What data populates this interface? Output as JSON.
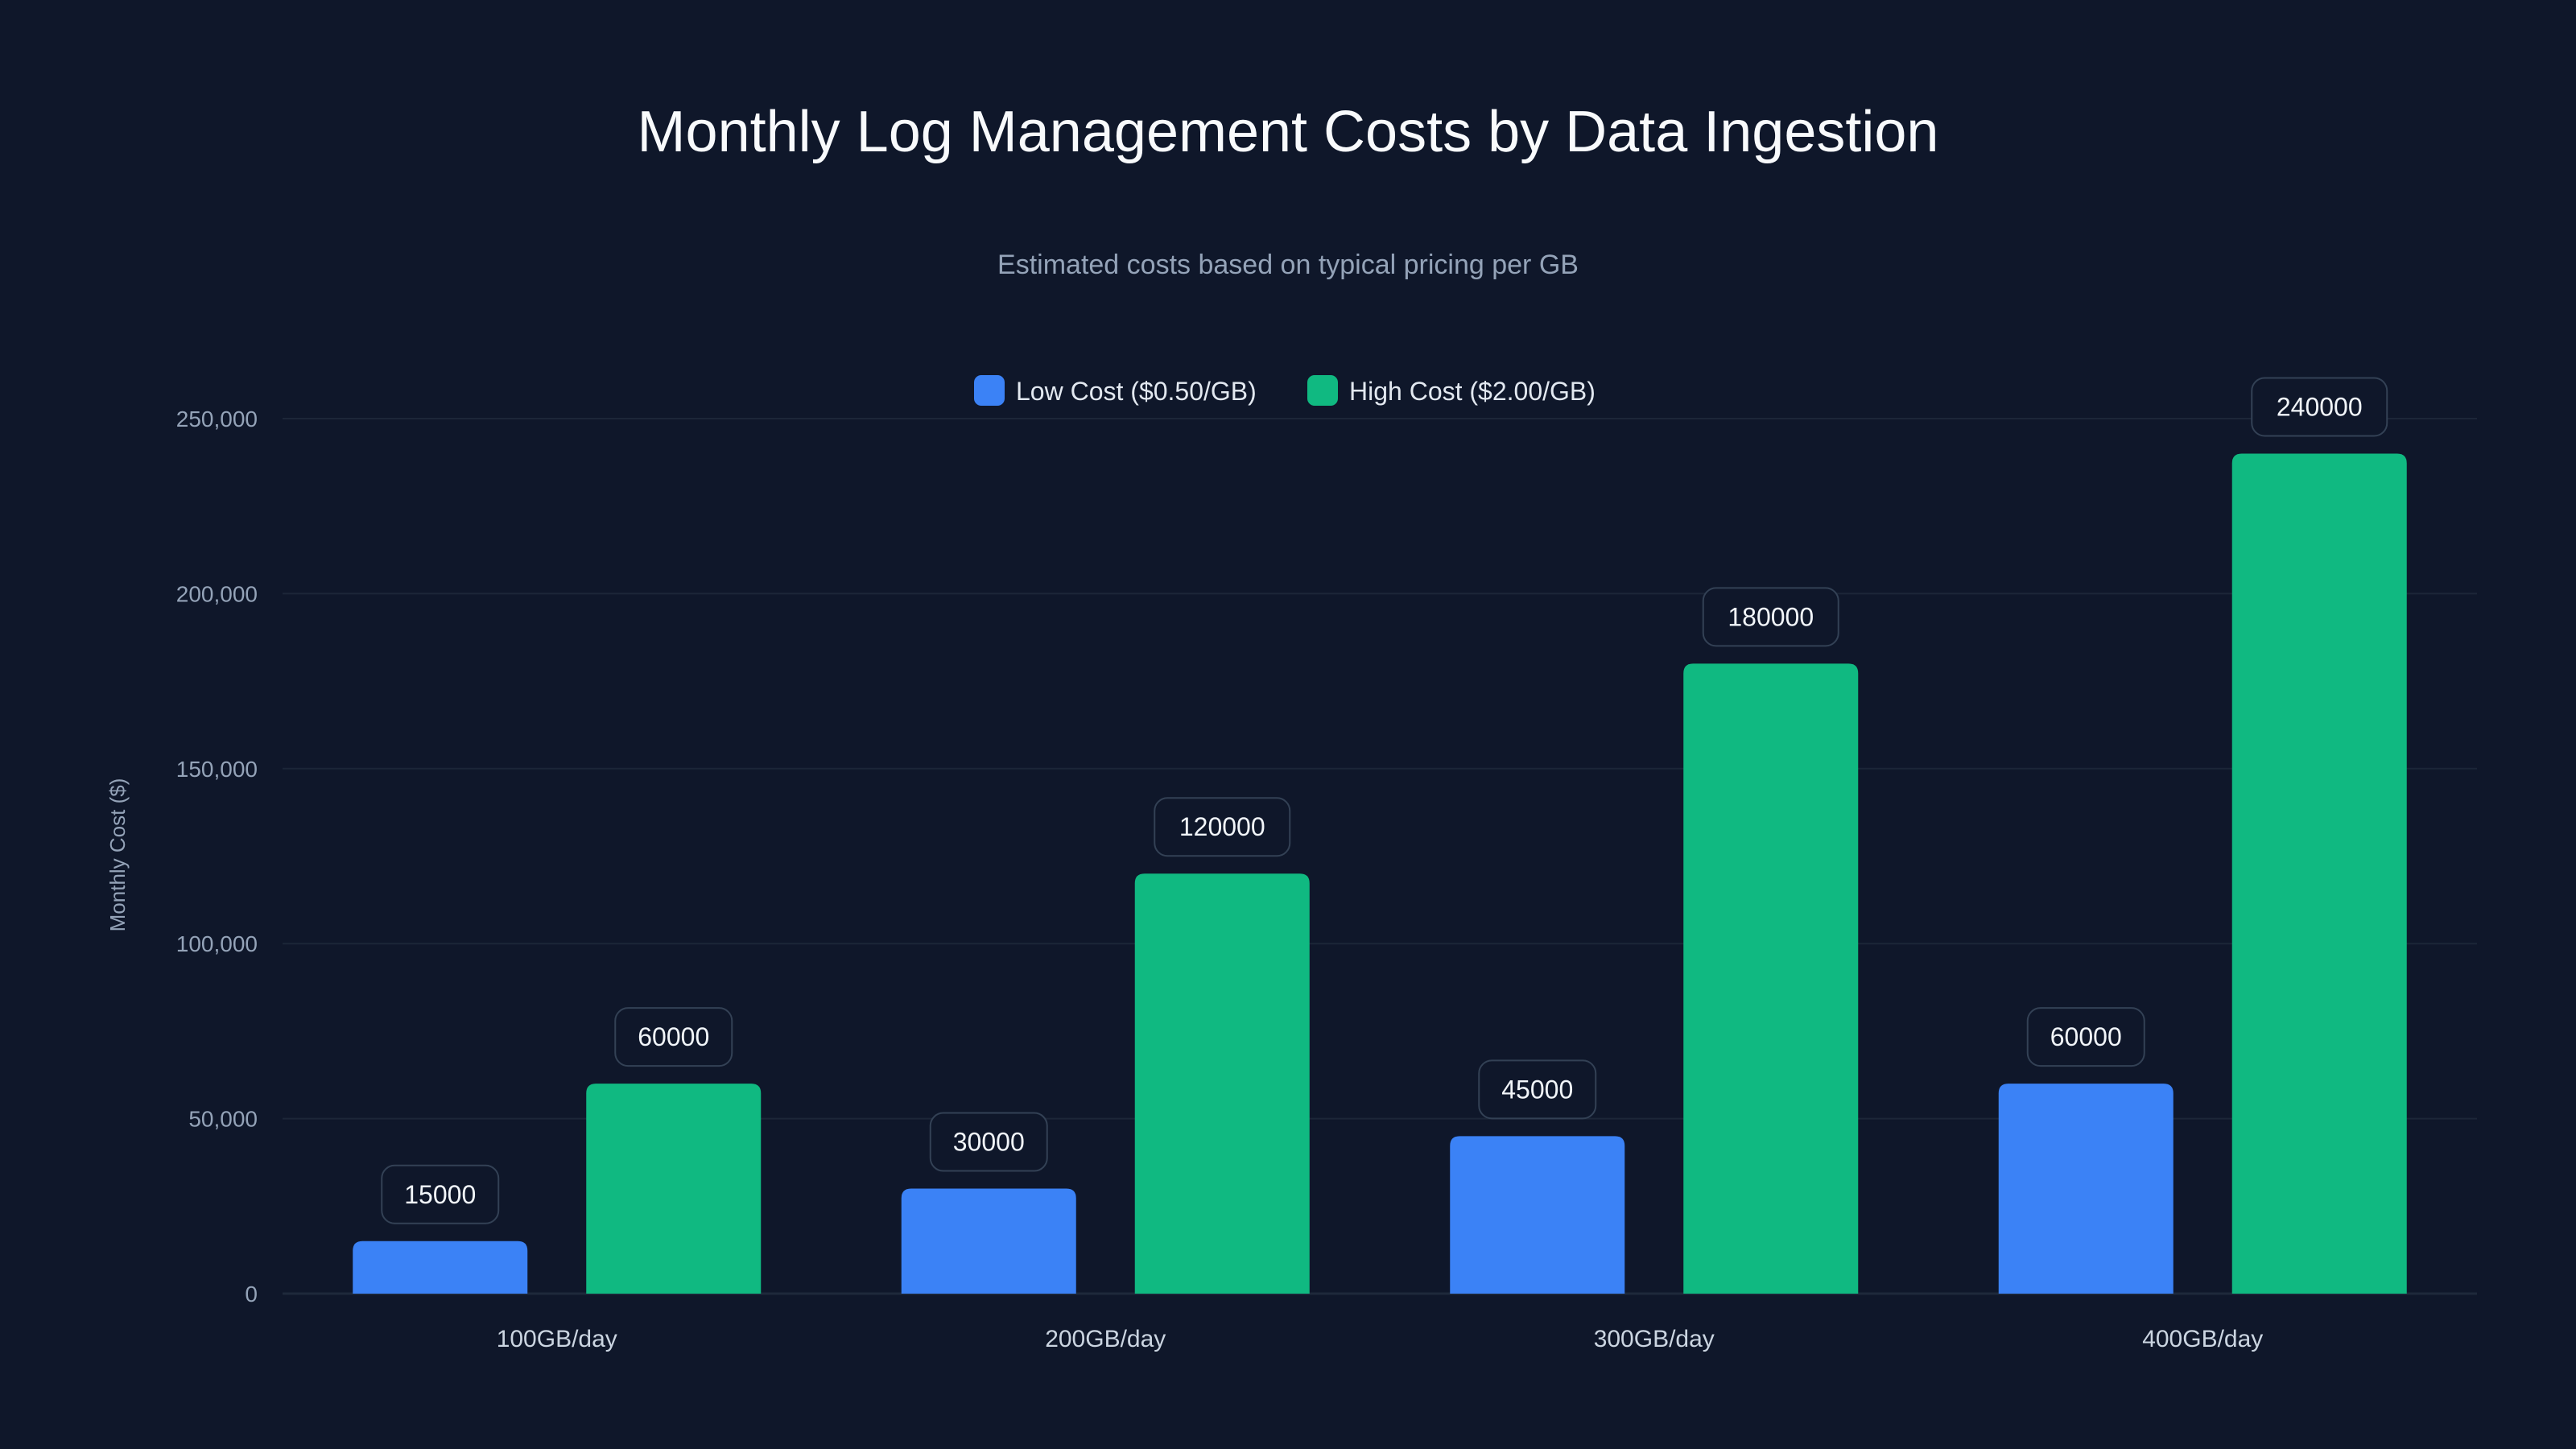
{
  "chart_data": {
    "type": "bar",
    "title": "Monthly Log Management Costs by Data Ingestion",
    "subtitle": "Estimated costs based on typical pricing per GB",
    "xlabel": "",
    "ylabel": "Monthly Cost ($)",
    "ylim": [
      0,
      250000
    ],
    "yticks": [
      0,
      50000,
      100000,
      150000,
      200000,
      250000
    ],
    "ytick_labels": [
      "0",
      "50,000",
      "100,000",
      "150,000",
      "200,000",
      "250,000"
    ],
    "grid": true,
    "legend_placement": "top-center",
    "categories": [
      "100GB/day",
      "200GB/day",
      "300GB/day",
      "400GB/day"
    ],
    "series": [
      {
        "name": "Low Cost ($0.50/GB)",
        "color": "#3b82f6",
        "values": [
          15000,
          30000,
          45000,
          60000
        ]
      },
      {
        "name": "High Cost ($2.00/GB)",
        "color": "#10b981",
        "values": [
          60000,
          120000,
          180000,
          240000
        ]
      }
    ]
  }
}
